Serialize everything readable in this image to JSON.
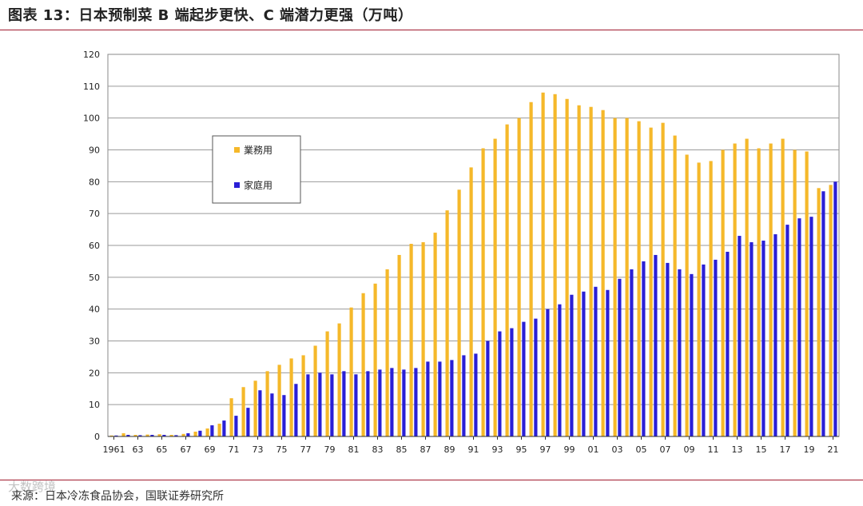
{
  "title": "图表 13：日本预制菜 B 端起步更快、C 端潜力更强（万吨）",
  "source": "来源：日本冷冻食品协会，国联证券研究所",
  "watermark": "大数跨境",
  "colors": {
    "business": "#f5b82a",
    "household": "#2a1fd6",
    "accent_rule": "#a01a2e"
  },
  "chart_data": {
    "type": "bar",
    "ylim": [
      0,
      120
    ],
    "yticks": [
      0,
      10,
      20,
      30,
      40,
      50,
      60,
      70,
      80,
      90,
      100,
      110,
      120
    ],
    "grid": true,
    "legend_position": "upper-left",
    "xtick_labels": [
      "1961",
      "63",
      "65",
      "67",
      "69",
      "71",
      "73",
      "75",
      "77",
      "79",
      "81",
      "83",
      "85",
      "87",
      "89",
      "91",
      "93",
      "95",
      "97",
      "99",
      "01",
      "03",
      "05",
      "07",
      "09",
      "11",
      "13",
      "15",
      "17",
      "19",
      "21"
    ],
    "categories": [
      "1961",
      "1962",
      "1963",
      "1964",
      "1965",
      "1966",
      "1967",
      "1968",
      "1969",
      "1970",
      "1971",
      "1972",
      "1973",
      "1974",
      "1975",
      "1976",
      "1977",
      "1978",
      "1979",
      "1980",
      "1981",
      "1982",
      "1983",
      "1984",
      "1985",
      "1986",
      "1987",
      "1988",
      "1989",
      "1990",
      "1991",
      "1992",
      "1993",
      "1994",
      "1995",
      "1996",
      "1997",
      "1998",
      "1999",
      "2000",
      "2001",
      "2002",
      "2003",
      "2004",
      "2005",
      "2006",
      "2007",
      "2008",
      "2009",
      "2010",
      "2011",
      "2012",
      "2013",
      "2014",
      "2015",
      "2016",
      "2017",
      "2018",
      "2019",
      "2020",
      "2021"
    ],
    "series": [
      {
        "name": "業務用",
        "values": [
          0.3,
          1.0,
          0.5,
          0.6,
          0.7,
          0.5,
          0.8,
          1.5,
          2.5,
          4.0,
          12.0,
          15.5,
          17.5,
          20.5,
          22.5,
          24.5,
          25.5,
          28.5,
          33.0,
          35.5,
          40.5,
          45.0,
          48.0,
          52.5,
          57.0,
          60.5,
          61.0,
          64.0,
          71.0,
          77.5,
          84.5,
          90.5,
          93.5,
          98.0,
          100.0,
          105.0,
          108.0,
          107.5,
          106.0,
          104.0,
          103.5,
          102.5,
          100.0,
          100.0,
          99.0,
          97.0,
          98.5,
          94.5,
          88.5,
          86.0,
          86.5,
          90.0,
          92.0,
          93.5,
          90.5,
          92.0,
          93.5,
          90.0,
          89.5,
          78.0,
          79.0
        ]
      },
      {
        "name": "家庭用",
        "values": [
          0.3,
          0.5,
          0.4,
          0.5,
          0.5,
          0.4,
          1.0,
          1.8,
          3.5,
          5.0,
          6.5,
          9.0,
          14.5,
          13.5,
          13.0,
          16.5,
          19.5,
          20.0,
          19.5,
          20.5,
          19.5,
          20.5,
          21.0,
          21.5,
          21.0,
          21.5,
          23.5,
          23.5,
          24.0,
          25.5,
          26.0,
          30.0,
          33.0,
          34.0,
          36.0,
          37.0,
          40.0,
          41.5,
          44.5,
          45.5,
          47.0,
          46.0,
          49.5,
          52.5,
          55.0,
          57.0,
          54.5,
          52.5,
          51.0,
          54.0,
          55.5,
          58.0,
          63.0,
          61.0,
          61.5,
          63.5,
          66.5,
          68.5,
          69.0,
          77.0,
          80.0
        ]
      }
    ]
  }
}
